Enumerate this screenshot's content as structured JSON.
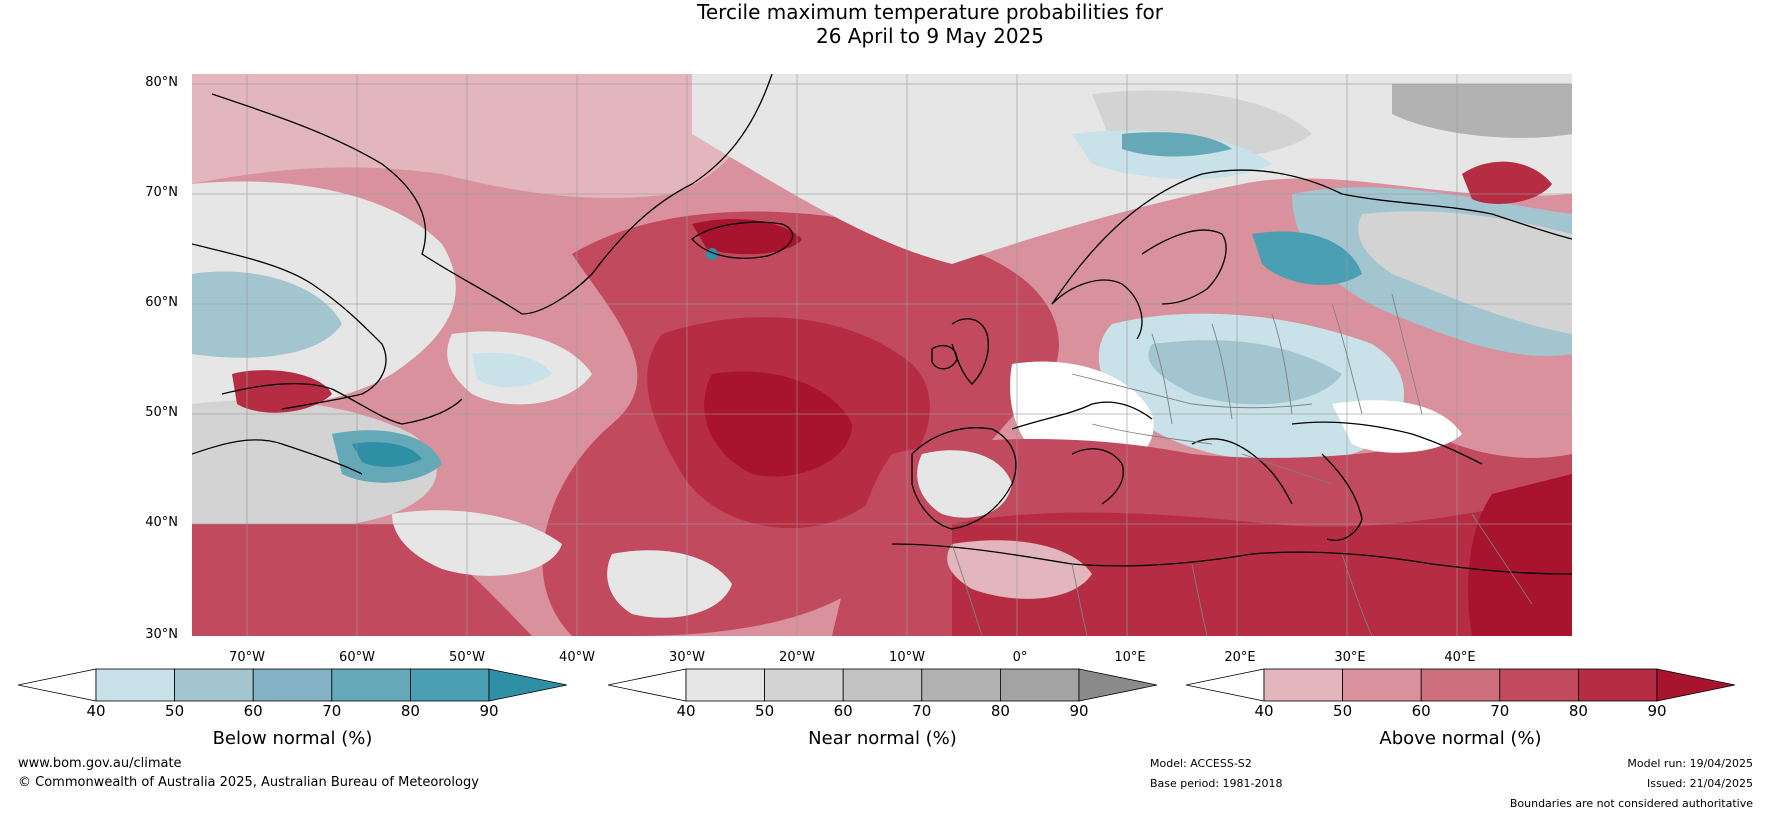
{
  "title": {
    "line1": "Tercile maximum temperature probabilities for",
    "line2": "26 April to 9 May 2025"
  },
  "map": {
    "lat_labels": [
      "80°N",
      "70°N",
      "60°N",
      "50°N",
      "40°N",
      "30°N"
    ],
    "lon_labels": [
      "70°W",
      "60°W",
      "50°W",
      "40°W",
      "30°W",
      "20°W",
      "10°W",
      "0°",
      "10°E",
      "20°E",
      "30°E",
      "40°E"
    ],
    "lon_range": [
      "-80",
      "45"
    ],
    "lat_range": [
      "30",
      "81"
    ]
  },
  "colorbars": [
    {
      "title": "Below normal (%)",
      "ticks": [
        "40",
        "50",
        "60",
        "70",
        "80",
        "90"
      ],
      "colors": [
        "#ffffff",
        "#c9e1e8",
        "#a2c5d0",
        "#83b3c4",
        "#65a9b9",
        "#4b9fb3",
        "#2e8fa5"
      ]
    },
    {
      "title": "Near normal (%)",
      "ticks": [
        "40",
        "50",
        "60",
        "70",
        "80",
        "90"
      ],
      "colors": [
        "#ffffff",
        "#e6e6e6",
        "#d3d3d3",
        "#c3c3c3",
        "#b2b2b2",
        "#a3a3a3",
        "#8a8a8a"
      ]
    },
    {
      "title": "Above normal (%)",
      "ticks": [
        "40",
        "50",
        "60",
        "70",
        "80",
        "90"
      ],
      "colors": [
        "#ffffff",
        "#e3b6bd",
        "#d9929d",
        "#ce6f7e",
        "#c24a5f",
        "#b52c43",
        "#a8132e"
      ]
    }
  ],
  "footer": {
    "website": "www.bom.gov.au/climate",
    "copyright": "© Commonwealth of Australia 2025, Australian Bureau of Meteorology",
    "model": "Model: ACCESS-S2",
    "base_period": "Base period: 1981-2018",
    "model_run": "Model run: 19/04/2025",
    "issued": "Issued: 21/04/2025",
    "disclaimer": "Boundaries are not considered authoritative"
  }
}
